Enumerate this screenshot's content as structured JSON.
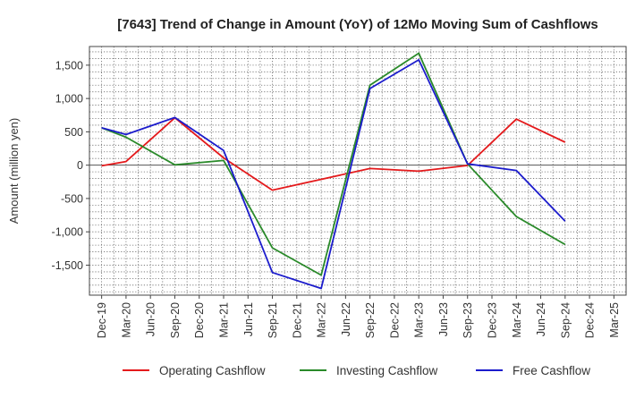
{
  "chart_data": {
    "type": "line",
    "title": "[7643]  Trend of Change in Amount (YoY) of 12Mo Moving Sum of Cashflows",
    "xlabel": "",
    "ylabel": "Amount (million yen)",
    "categories": [
      "Dec-19",
      "Mar-20",
      "Jun-20",
      "Sep-20",
      "Dec-20",
      "Mar-21",
      "Jun-21",
      "Sep-21",
      "Dec-21",
      "Mar-22",
      "Jun-22",
      "Sep-22",
      "Dec-22",
      "Mar-23",
      "Jun-23",
      "Sep-23",
      "Dec-23",
      "Mar-24",
      "Jun-24",
      "Sep-24",
      "Dec-24",
      "Mar-25"
    ],
    "ylim": [
      -1950,
      1780
    ],
    "yticks": [
      -1500,
      -1000,
      -500,
      0,
      500,
      1000,
      1500
    ],
    "ytick_labels": [
      "-1,500",
      "-1,000",
      "-500",
      "0",
      "500",
      "1,000",
      "1,500"
    ],
    "grid": true,
    "legend_position": "bottom",
    "series": [
      {
        "name": "Operating Cashflow",
        "color": "#e41a1c",
        "values": [
          -10,
          55,
          null,
          710,
          null,
          110,
          null,
          -375,
          null,
          null,
          null,
          -50,
          null,
          -90,
          null,
          -5,
          null,
          690,
          null,
          345,
          null,
          null
        ]
      },
      {
        "name": "Investing Cashflow",
        "color": "#2a8a2a",
        "values": [
          560,
          420,
          null,
          5,
          null,
          70,
          null,
          -1240,
          null,
          -1650,
          null,
          1200,
          null,
          1680,
          null,
          20,
          null,
          -770,
          null,
          -1190,
          null,
          null
        ]
      },
      {
        "name": "Free Cashflow",
        "color": "#1c1ccc",
        "values": [
          560,
          460,
          null,
          715,
          null,
          220,
          null,
          -1610,
          null,
          -1850,
          null,
          1150,
          null,
          1580,
          null,
          20,
          null,
          -80,
          null,
          -840,
          null,
          null
        ]
      }
    ]
  }
}
